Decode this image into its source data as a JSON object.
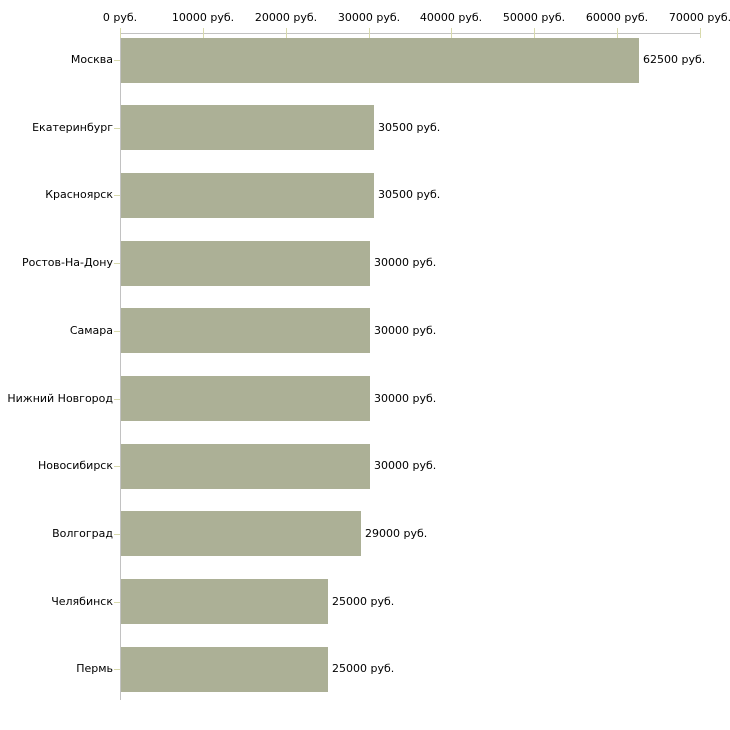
{
  "chart_data": {
    "type": "bar",
    "orientation": "horizontal",
    "title": "",
    "categories": [
      "Москва",
      "Екатеринбург",
      "Красноярск",
      "Ростов-На-Дону",
      "Самара",
      "Нижний Новгород",
      "Новосибирск",
      "Волгоград",
      "Челябинск",
      "Пермь"
    ],
    "values": [
      62500,
      30500,
      30500,
      30000,
      30000,
      30000,
      30000,
      29000,
      25000,
      25000
    ],
    "value_labels": [
      "62500 руб.",
      "30500 руб.",
      "30500 руб.",
      "30000 руб.",
      "30000 руб.",
      "30000 руб.",
      "30000 руб.",
      "29000 руб.",
      "25000 руб.",
      "25000 руб."
    ],
    "x_ticks": [
      0,
      10000,
      20000,
      30000,
      40000,
      50000,
      60000,
      70000
    ],
    "x_tick_labels": [
      "0 руб.",
      "10000 руб.",
      "20000 руб.",
      "30000 руб.",
      "40000 руб.",
      "50000 руб.",
      "60000 руб.",
      "70000 руб."
    ],
    "xlim": [
      0,
      70000
    ],
    "unit": "руб.",
    "grid": false,
    "legend_position": "none",
    "colors": {
      "bar": "#acb096",
      "axis_line": "#c2c2c2",
      "tick": "#d8daac",
      "text": "#000000",
      "background": "#ffffff"
    }
  }
}
